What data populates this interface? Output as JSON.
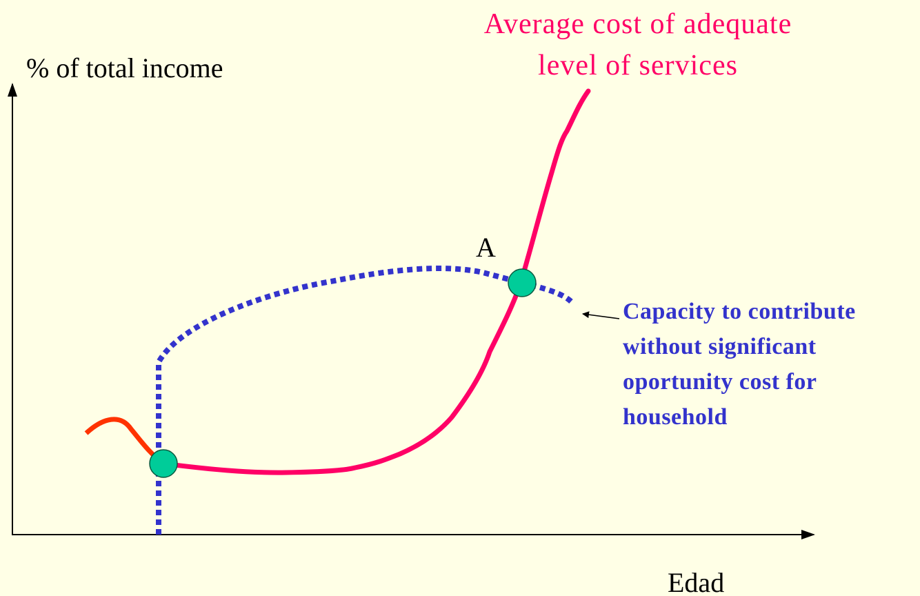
{
  "axes": {
    "y_label": "% of total income",
    "x_label": "Edad"
  },
  "curves": {
    "cost": {
      "label_lines": [
        "Average cost of adequate",
        "level of services"
      ]
    },
    "capacity": {
      "label_lines": [
        "Capacity to contribute",
        "without significant",
        "oportunity cost for",
        "household"
      ]
    }
  },
  "points": {
    "a": {
      "label": "A"
    }
  }
}
